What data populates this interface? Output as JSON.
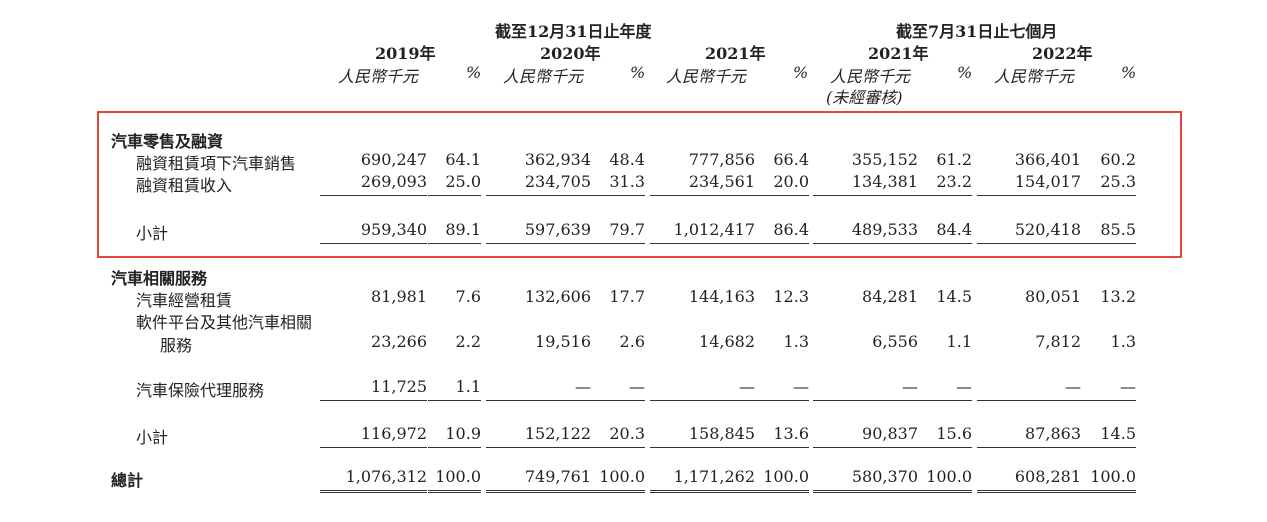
{
  "header": {
    "group_annual": "截至12月31日止年度",
    "group_seven": "截至7月31日止七個月",
    "columns": [
      {
        "year": "2019年",
        "unit": "人民幣千元",
        "pct": "%",
        "note": ""
      },
      {
        "year": "2020年",
        "unit": "人民幣千元",
        "pct": "%",
        "note": ""
      },
      {
        "year": "2021年",
        "unit": "人民幣千元",
        "pct": "%",
        "note": ""
      },
      {
        "year": "2021年",
        "unit": "人民幣千元",
        "pct": "%",
        "note": "(未經審核)"
      },
      {
        "year": "2022年",
        "unit": "人民幣千元",
        "pct": "%",
        "note": ""
      }
    ]
  },
  "sections": [
    {
      "title": "汽車零售及融資",
      "rows": [
        {
          "label": "融資租賃項下汽車銷售",
          "values": [
            "690,247",
            "64.1",
            "362,934",
            "48.4",
            "777,856",
            "66.4",
            "355,152",
            "61.2",
            "366,401",
            "60.2"
          ]
        },
        {
          "label": "融資租賃收入",
          "values": [
            "269,093",
            "25.0",
            "234,705",
            "31.3",
            "234,561",
            "20.0",
            "134,381",
            "23.2",
            "154,017",
            "25.3"
          ]
        }
      ],
      "subtotal": {
        "label": "小計",
        "values": [
          "959,340",
          "89.1",
          "597,639",
          "79.7",
          "1,012,417",
          "86.4",
          "489,533",
          "84.4",
          "520,418",
          "85.5"
        ]
      }
    },
    {
      "title": "汽車相關服務",
      "rows": [
        {
          "label": "汽車經營租賃",
          "values": [
            "81,981",
            "7.6",
            "132,606",
            "17.7",
            "144,163",
            "12.3",
            "84,281",
            "14.5",
            "80,051",
            "13.2"
          ]
        },
        {
          "label": "軟件平台及其他汽車相關",
          "label2": "服務",
          "values": [
            "23,266",
            "2.2",
            "19,516",
            "2.6",
            "14,682",
            "1.3",
            "6,556",
            "1.1",
            "7,812",
            "1.3"
          ]
        },
        {
          "label": "汽車保險代理服務",
          "values": [
            "11,725",
            "1.1",
            "—",
            "—",
            "—",
            "—",
            "—",
            "—",
            "—",
            "—"
          ]
        }
      ],
      "subtotal": {
        "label": "小計",
        "values": [
          "116,972",
          "10.9",
          "152,122",
          "20.3",
          "158,845",
          "13.6",
          "90,837",
          "15.6",
          "87,863",
          "14.5"
        ]
      }
    }
  ],
  "total": {
    "label": "總計",
    "values": [
      "1,076,312",
      "100.0",
      "749,761",
      "100.0",
      "1,171,262",
      "100.0",
      "580,370",
      "100.0",
      "608,281",
      "100.0"
    ]
  }
}
